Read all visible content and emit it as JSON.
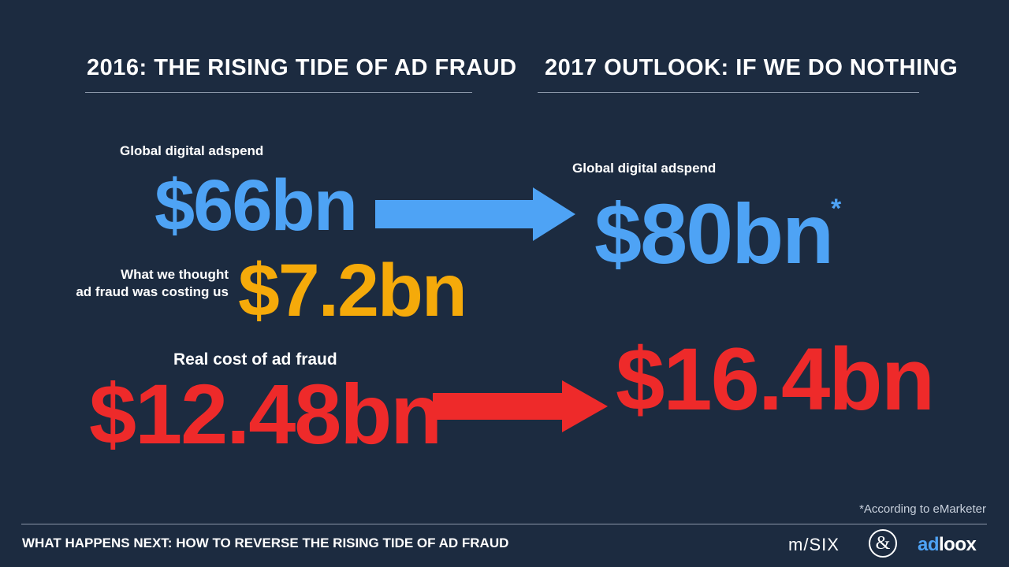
{
  "left": {
    "heading": "2016: THE RISING TIDE OF AD FRAUD",
    "adspend_label": "Global digital adspend",
    "adspend_value": "$66bn",
    "thought_label_line1": "What we thought",
    "thought_label_line2": "ad fraud was costing us",
    "thought_value": "$7.2bn",
    "real_label": "Real cost of ad fraud",
    "real_value": "$12.48bn"
  },
  "right": {
    "heading": "2017 OUTLOOK: IF WE DO NOTHING",
    "adspend_label": "Global digital adspend",
    "adspend_value": "$80bn",
    "asterisk": "*",
    "fraud_value": "$16.4bn"
  },
  "footer": {
    "title": "WHAT HAPPENS NEXT: HOW TO REVERSE THE RISING TIDE OF AD FRAUD",
    "note": "*According to eMarketer",
    "logo_msix": "m/SIX",
    "logo_ampersand": "&",
    "logo_adloox": "adloox"
  },
  "colors": {
    "background": "#1c2b40",
    "blue": "#4ea3f5",
    "yellow": "#f5aa0a",
    "red": "#ee2a2a"
  },
  "icons": [
    "arrow-right-icon",
    "arrow-right-icon"
  ]
}
